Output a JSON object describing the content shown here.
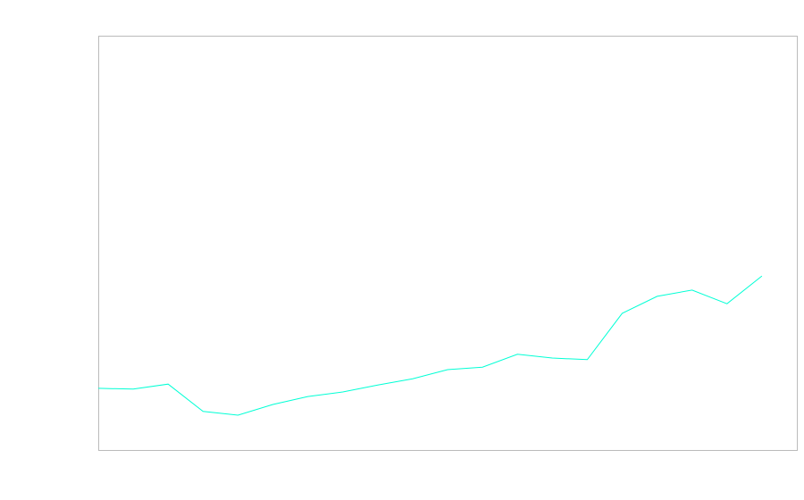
{
  "chart_data": {
    "type": "line",
    "title": "",
    "xlabel": "",
    "ylabel": "",
    "xlim": [
      0,
      20
    ],
    "ylim": [
      0,
      100
    ],
    "grid": false,
    "x": [
      0,
      1,
      2,
      3,
      4,
      5,
      6,
      7,
      8,
      9,
      10,
      11,
      12,
      13,
      14,
      15,
      16,
      17,
      18,
      19
    ],
    "series": [
      {
        "values": [
          14.9,
          14.7,
          15.9,
          9.3,
          8.4,
          11.0,
          12.9,
          14.0,
          15.7,
          17.2,
          19.4,
          20.0,
          23.1,
          22.2,
          21.8,
          33.0,
          37.1,
          38.6,
          35.3,
          42.0
        ],
        "color": "#00ffd5"
      }
    ],
    "frame_color": "#bbbbbb"
  }
}
